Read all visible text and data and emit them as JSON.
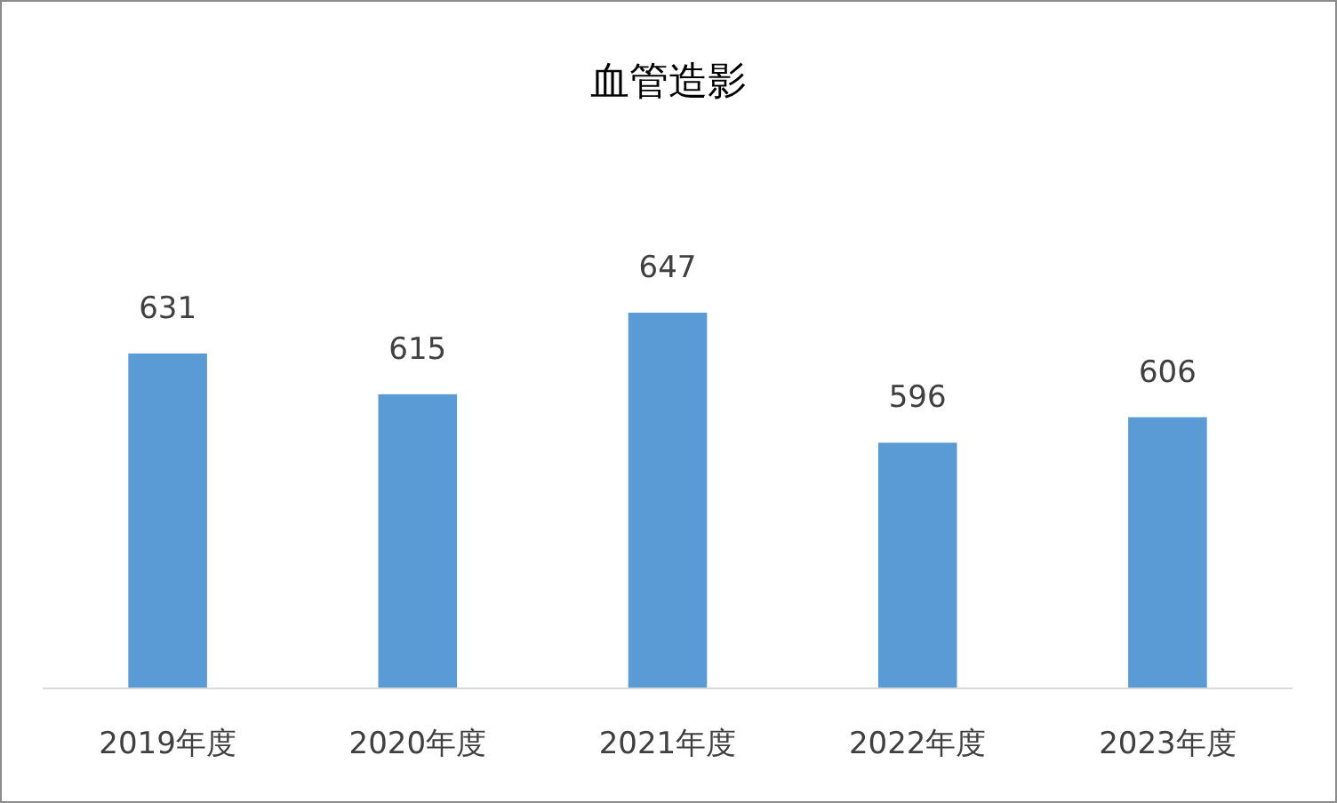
{
  "chart_data": {
    "type": "bar",
    "title": "血管造影",
    "categories": [
      "2019年度",
      "2020年度",
      "2021年度",
      "2022年度",
      "2023年度"
    ],
    "values": [
      631,
      615,
      647,
      596,
      606
    ],
    "color": "#5b9bd5",
    "ylim": [
      500,
      647
    ],
    "tick_labels": "x",
    "data_labels": true
  }
}
